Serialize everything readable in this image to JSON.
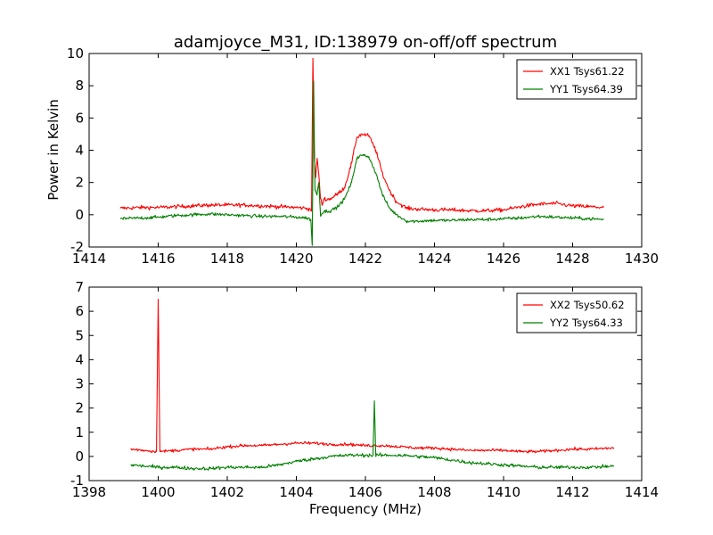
{
  "title": "adamjoyce_M31, ID:138979 on-off/off spectrum",
  "ylabel": "Power in Kelvin",
  "xlabel": "Frequency (MHz)",
  "chart_data": [
    {
      "type": "line",
      "title": "adamjoyce_M31, ID:138979 on-off/off spectrum",
      "xlabel": "",
      "ylabel": "Power in Kelvin",
      "xlim": [
        1414,
        1430
      ],
      "ylim": [
        -2,
        10
      ],
      "xticks": [
        1414,
        1416,
        1418,
        1420,
        1422,
        1424,
        1426,
        1428,
        1430
      ],
      "yticks": [
        -2,
        0,
        2,
        4,
        6,
        8,
        10
      ],
      "legend_position": "top-right",
      "series": [
        {
          "name": "XX1 Tsys61.22",
          "color": "#ff0000",
          "x": [
            1414.9,
            1415.5,
            1416.0,
            1416.5,
            1417.0,
            1417.5,
            1418.0,
            1418.5,
            1419.0,
            1419.5,
            1420.0,
            1420.3,
            1420.44,
            1420.48,
            1420.52,
            1420.56,
            1420.6,
            1420.65,
            1420.7,
            1420.75,
            1420.8,
            1420.9,
            1421.0,
            1421.2,
            1421.4,
            1421.6,
            1421.75,
            1421.9,
            1422.1,
            1422.3,
            1422.5,
            1422.7,
            1422.9,
            1423.2,
            1423.5,
            1424.0,
            1424.5,
            1425.0,
            1425.5,
            1426.0,
            1426.5,
            1427.0,
            1427.5,
            1428.0,
            1428.5,
            1428.9
          ],
          "y": [
            0.4,
            0.45,
            0.45,
            0.5,
            0.55,
            0.6,
            0.6,
            0.6,
            0.55,
            0.5,
            0.45,
            0.4,
            0.3,
            9.7,
            3.5,
            2.3,
            3.5,
            2.5,
            1.0,
            0.6,
            1.0,
            0.95,
            1.0,
            1.3,
            1.7,
            3.2,
            4.8,
            5.0,
            4.9,
            4.0,
            2.5,
            1.5,
            0.8,
            0.4,
            0.35,
            0.3,
            0.3,
            0.25,
            0.25,
            0.3,
            0.5,
            0.65,
            0.7,
            0.55,
            0.5,
            0.45
          ],
          "noise": 0.12
        },
        {
          "name": "YY1 Tsys64.39",
          "color": "#008000",
          "x": [
            1414.9,
            1415.5,
            1416.0,
            1416.5,
            1417.0,
            1417.5,
            1418.0,
            1418.5,
            1419.0,
            1419.5,
            1420.0,
            1420.3,
            1420.42,
            1420.46,
            1420.5,
            1420.54,
            1420.6,
            1420.65,
            1420.7,
            1420.8,
            1421.0,
            1421.2,
            1421.4,
            1421.6,
            1421.75,
            1421.9,
            1422.1,
            1422.3,
            1422.5,
            1422.7,
            1422.9,
            1423.2,
            1423.5,
            1424.0,
            1424.5,
            1425.0,
            1425.5,
            1426.0,
            1426.5,
            1427.0,
            1427.5,
            1428.0,
            1428.5,
            1428.9
          ],
          "y": [
            -0.25,
            -0.2,
            -0.15,
            -0.05,
            0.0,
            0.05,
            0.0,
            -0.05,
            -0.1,
            -0.1,
            -0.15,
            -0.2,
            -0.3,
            -1.9,
            8.3,
            1.5,
            1.3,
            2.0,
            0.0,
            0.2,
            0.25,
            0.5,
            1.0,
            2.0,
            3.5,
            3.7,
            3.6,
            2.6,
            1.2,
            0.4,
            0.0,
            -0.4,
            -0.4,
            -0.35,
            -0.35,
            -0.3,
            -0.3,
            -0.25,
            -0.2,
            -0.1,
            -0.15,
            -0.2,
            -0.25,
            -0.3
          ],
          "noise": 0.1
        }
      ]
    },
    {
      "type": "line",
      "title": "",
      "xlabel": "Frequency (MHz)",
      "ylabel": "",
      "xlim": [
        1398,
        1414
      ],
      "ylim": [
        -1,
        7
      ],
      "xticks": [
        1398,
        1400,
        1402,
        1404,
        1406,
        1408,
        1410,
        1412,
        1414
      ],
      "yticks": [
        -1,
        0,
        1,
        2,
        3,
        4,
        5,
        6,
        7
      ],
      "legend_position": "top-right",
      "series": [
        {
          "name": "XX2 Tsys50.62",
          "color": "#ff0000",
          "x": [
            1399.2,
            1399.6,
            1399.95,
            1400.0,
            1400.05,
            1400.5,
            1401.0,
            1401.5,
            1402.0,
            1402.5,
            1403.0,
            1403.5,
            1404.0,
            1404.5,
            1405.0,
            1405.5,
            1406.0,
            1406.5,
            1407.0,
            1407.5,
            1408.0,
            1408.5,
            1409.0,
            1409.5,
            1410.0,
            1410.5,
            1411.0,
            1411.5,
            1412.0,
            1412.5,
            1413.2
          ],
          "y": [
            0.3,
            0.25,
            0.2,
            6.5,
            0.2,
            0.25,
            0.3,
            0.3,
            0.4,
            0.45,
            0.45,
            0.5,
            0.55,
            0.55,
            0.5,
            0.5,
            0.45,
            0.45,
            0.4,
            0.35,
            0.35,
            0.3,
            0.25,
            0.25,
            0.25,
            0.2,
            0.2,
            0.25,
            0.3,
            0.3,
            0.35
          ],
          "noise": 0.06
        },
        {
          "name": "YY2 Tsys64.33",
          "color": "#008000",
          "x": [
            1399.2,
            1399.6,
            1400.0,
            1400.5,
            1401.0,
            1401.5,
            1402.0,
            1402.5,
            1403.0,
            1403.5,
            1404.0,
            1404.5,
            1405.0,
            1405.5,
            1406.0,
            1406.22,
            1406.26,
            1406.3,
            1406.5,
            1407.0,
            1407.5,
            1408.0,
            1408.5,
            1409.0,
            1409.5,
            1410.0,
            1410.5,
            1411.0,
            1411.5,
            1412.0,
            1412.5,
            1413.2
          ],
          "y": [
            -0.35,
            -0.4,
            -0.45,
            -0.45,
            -0.5,
            -0.5,
            -0.45,
            -0.45,
            -0.45,
            -0.35,
            -0.2,
            -0.1,
            0.0,
            0.05,
            0.05,
            0.05,
            2.3,
            0.05,
            0.05,
            0.05,
            0.0,
            -0.05,
            -0.15,
            -0.25,
            -0.3,
            -0.35,
            -0.4,
            -0.45,
            -0.45,
            -0.45,
            -0.45,
            -0.4
          ],
          "noise": 0.07
        }
      ]
    }
  ]
}
